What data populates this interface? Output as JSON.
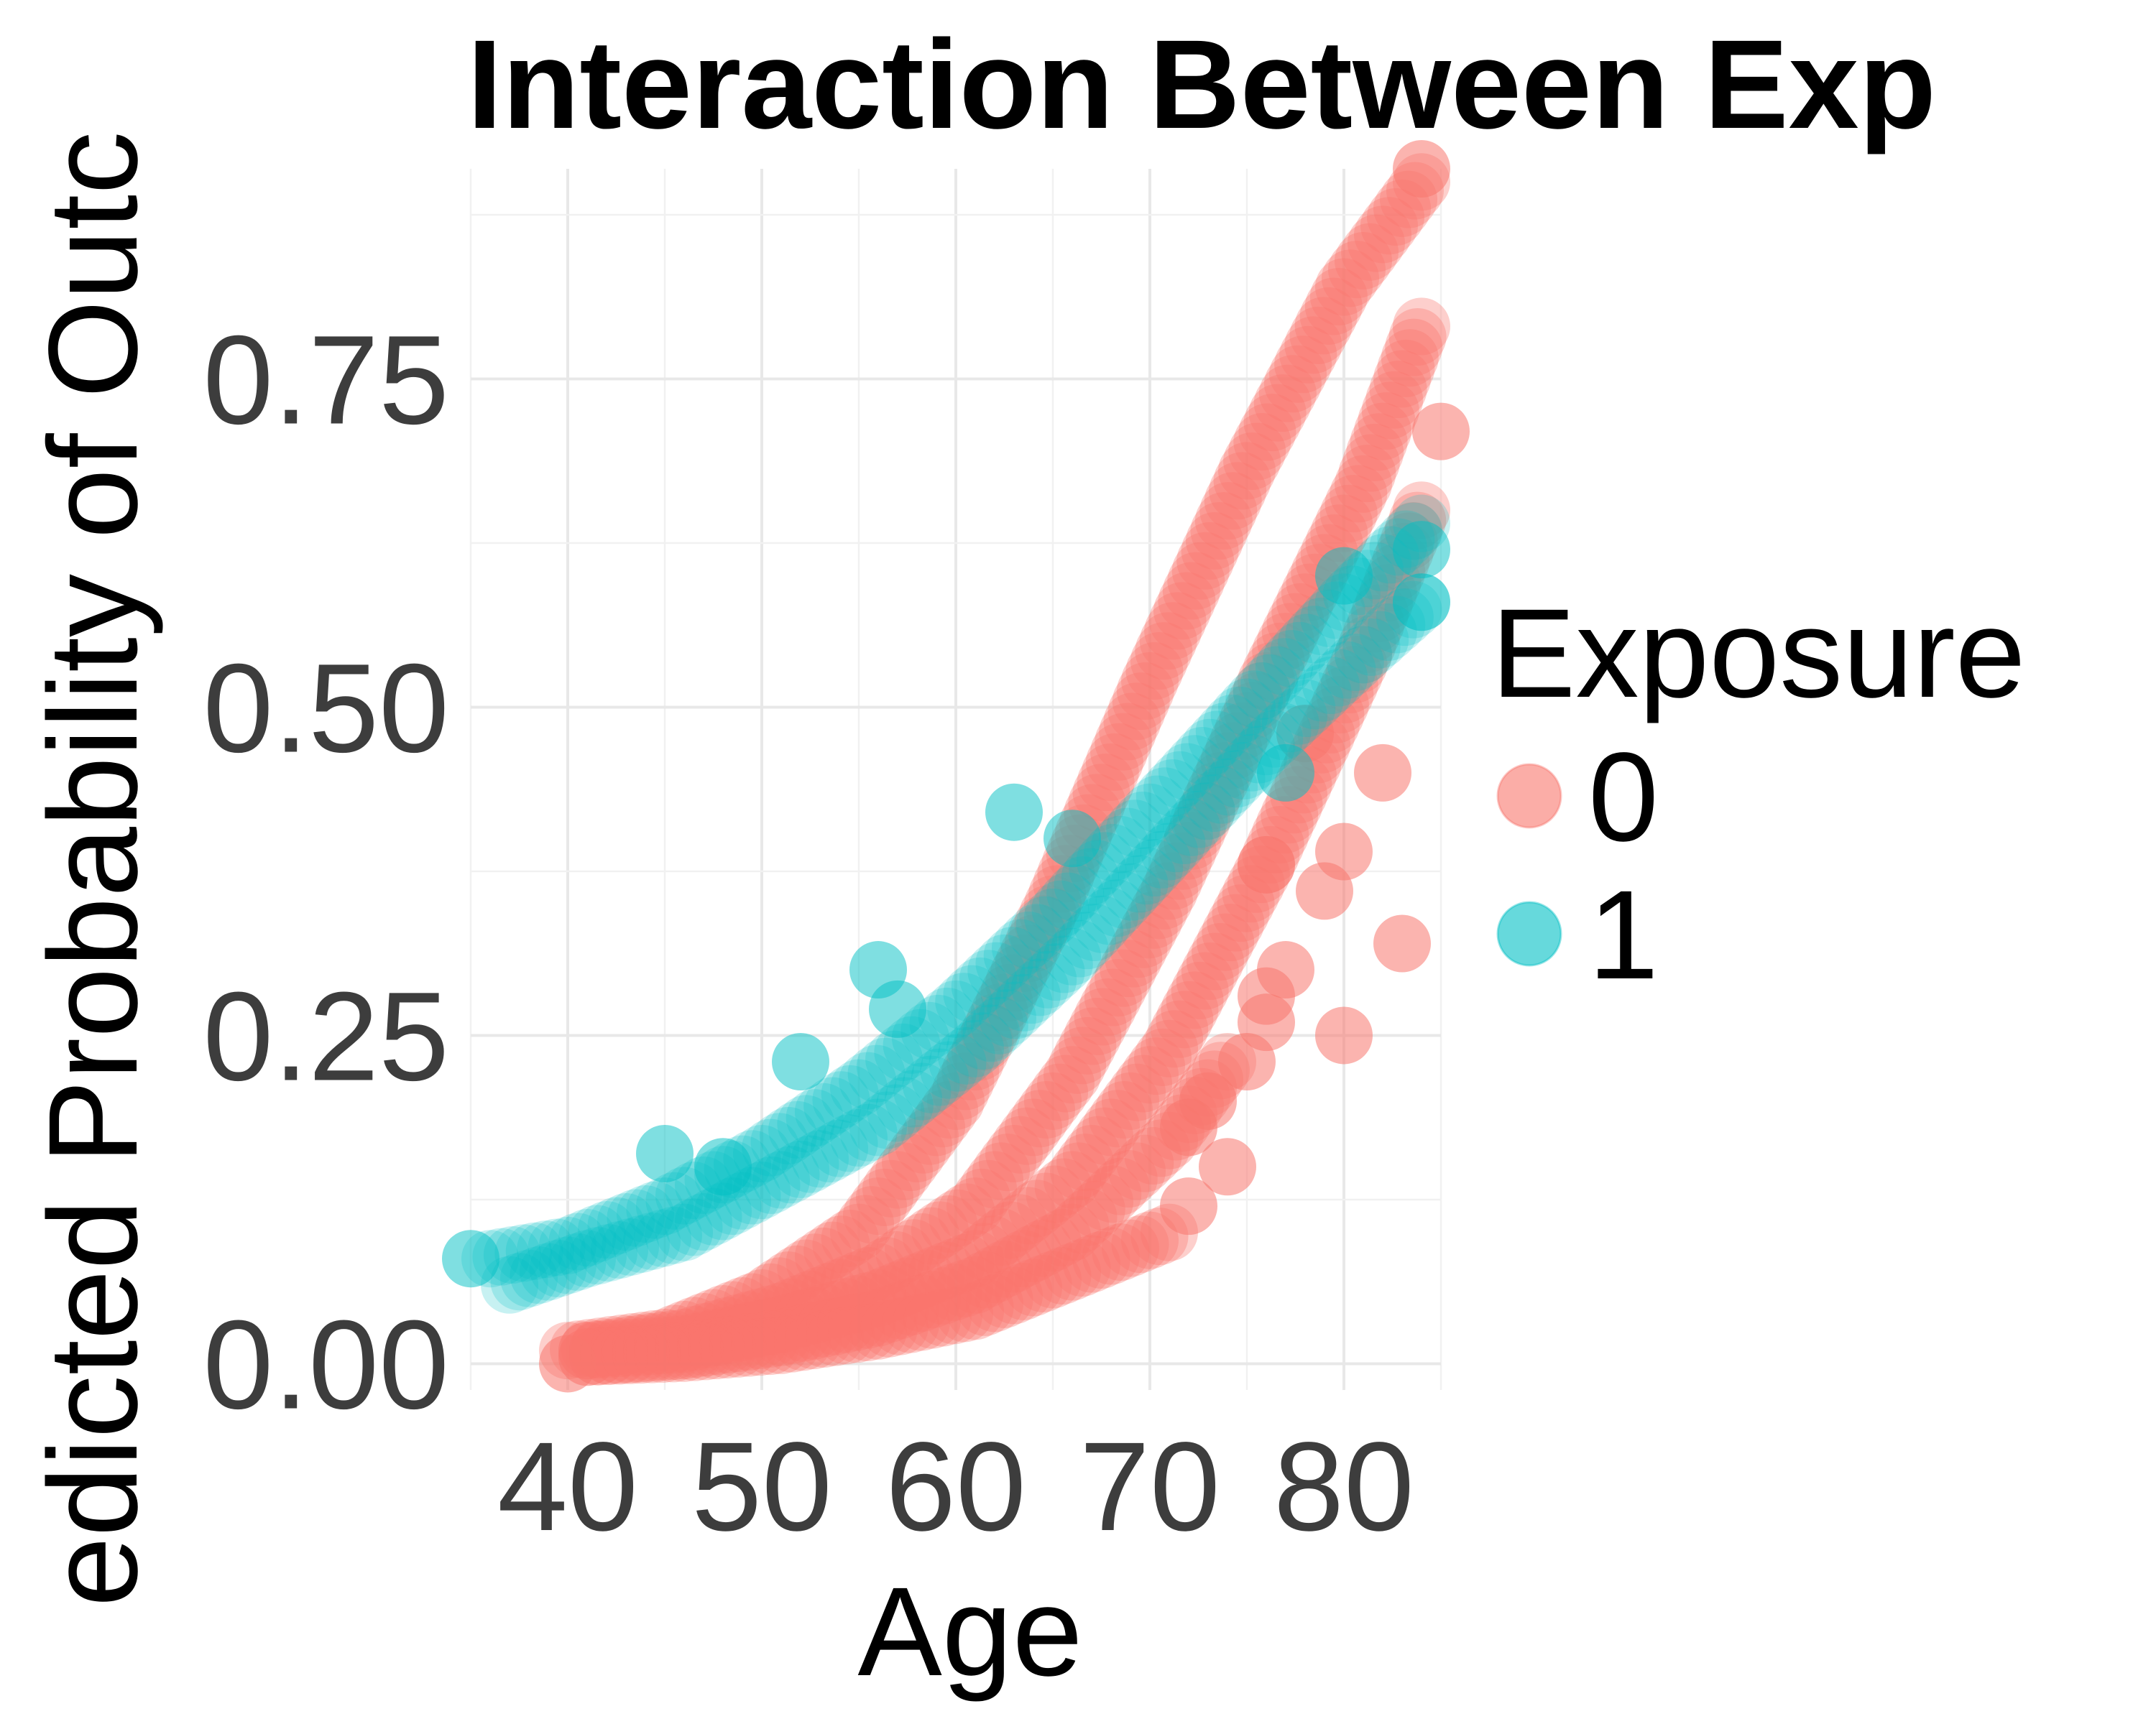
{
  "chart_data": {
    "type": "scatter",
    "title": "Interaction Between Exp",
    "xlabel": "Age",
    "ylabel": "edicted Probability of Outc",
    "xlim": [
      35,
      85
    ],
    "ylim": [
      -0.02,
      0.91
    ],
    "x_ticks": [
      40,
      50,
      60,
      70,
      80
    ],
    "x_tick_labels": [
      "40",
      "50",
      "60",
      "70",
      "80"
    ],
    "y_ticks": [
      0,
      0.25,
      0.5,
      0.75
    ],
    "y_tick_labels": [
      "0.00",
      "0.25",
      "0.50",
      "0.75"
    ],
    "grid": true,
    "legend": {
      "title": "Exposure",
      "position": "right"
    },
    "colors": {
      "exposure_0": "#F8766D",
      "exposure_1": "#00BFC4"
    },
    "series": [
      {
        "name": "0",
        "color": "#F8766D",
        "curves": [
          {
            "x": [
              40,
              45,
              50,
              55,
              60,
              65,
              70,
              75,
              80,
              84
            ],
            "y": [
              0.01,
              0.02,
              0.05,
              0.1,
              0.2,
              0.35,
              0.52,
              0.68,
              0.82,
              0.9
            ]
          },
          {
            "x": [
              41,
              46,
              51,
              56,
              61,
              66,
              71,
              76,
              81,
              84
            ],
            "y": [
              0.01,
              0.02,
              0.04,
              0.07,
              0.12,
              0.22,
              0.36,
              0.52,
              0.67,
              0.79
            ]
          },
          {
            "x": [
              41,
              46,
              51,
              56,
              61,
              66,
              71,
              76,
              81,
              84
            ],
            "y": [
              0.01,
              0.015,
              0.03,
              0.05,
              0.08,
              0.14,
              0.24,
              0.38,
              0.54,
              0.65
            ]
          },
          {
            "x": [
              41,
              46,
              51,
              56,
              61,
              66,
              71,
              74
            ],
            "y": [
              0.005,
              0.01,
              0.02,
              0.035,
              0.06,
              0.1,
              0.17,
              0.23
            ]
          },
          {
            "x": [
              41,
              46,
              51,
              56,
              61,
              66,
              71
            ],
            "y": [
              0.005,
              0.008,
              0.014,
              0.025,
              0.04,
              0.07,
              0.1
            ]
          }
        ],
        "points": [
          {
            "x": 40,
            "y": 0.0
          },
          {
            "x": 85,
            "y": 0.71
          },
          {
            "x": 84,
            "y": 0.91
          },
          {
            "x": 82,
            "y": 0.45
          },
          {
            "x": 80,
            "y": 0.39
          },
          {
            "x": 79,
            "y": 0.36
          },
          {
            "x": 83,
            "y": 0.32
          },
          {
            "x": 80,
            "y": 0.25
          },
          {
            "x": 77,
            "y": 0.3
          },
          {
            "x": 76,
            "y": 0.28
          },
          {
            "x": 76,
            "y": 0.26
          },
          {
            "x": 75,
            "y": 0.23
          },
          {
            "x": 74,
            "y": 0.15
          },
          {
            "x": 72,
            "y": 0.12
          },
          {
            "x": 72,
            "y": 0.18
          },
          {
            "x": 73,
            "y": 0.2
          },
          {
            "x": 78,
            "y": 0.48
          },
          {
            "x": 76,
            "y": 0.38
          }
        ]
      },
      {
        "name": "1",
        "color": "#00BFC4",
        "curves": [
          {
            "x": [
              36,
              40,
              45,
              50,
              55,
              60,
              65,
              70,
              75,
              80,
              84
            ],
            "y": [
              0.08,
              0.09,
              0.12,
              0.16,
              0.21,
              0.27,
              0.34,
              0.42,
              0.5,
              0.58,
              0.64
            ]
          },
          {
            "x": [
              37,
              41,
              46,
              51,
              56,
              61,
              66,
              71,
              76,
              81,
              84
            ],
            "y": [
              0.06,
              0.08,
              0.1,
              0.14,
              0.18,
              0.24,
              0.31,
              0.39,
              0.47,
              0.54,
              0.58
            ]
          }
        ],
        "points": [
          {
            "x": 35,
            "y": 0.08
          },
          {
            "x": 84,
            "y": 0.62
          },
          {
            "x": 84,
            "y": 0.58
          },
          {
            "x": 77,
            "y": 0.45
          },
          {
            "x": 80,
            "y": 0.6
          },
          {
            "x": 63,
            "y": 0.42
          },
          {
            "x": 66,
            "y": 0.4
          },
          {
            "x": 57,
            "y": 0.27
          },
          {
            "x": 56,
            "y": 0.3
          },
          {
            "x": 52,
            "y": 0.23
          },
          {
            "x": 48,
            "y": 0.15
          },
          {
            "x": 45,
            "y": 0.16
          }
        ]
      }
    ]
  }
}
